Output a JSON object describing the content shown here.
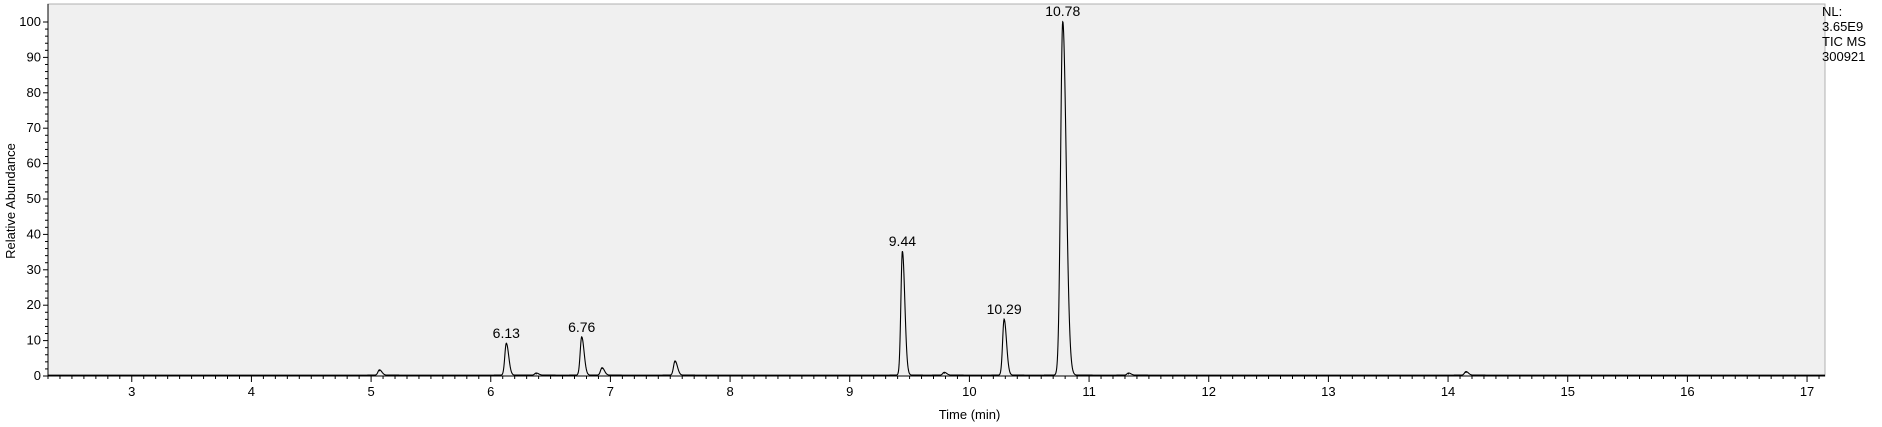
{
  "chart_data": {
    "type": "line",
    "xlabel": "Time (min)",
    "ylabel": "Relative Abundance",
    "xlim": [
      2.3,
      17.15
    ],
    "ylim": [
      0,
      100
    ],
    "x_ticks": [
      3,
      4,
      5,
      6,
      7,
      8,
      9,
      10,
      11,
      12,
      13,
      14,
      15,
      16,
      17
    ],
    "y_ticks": [
      0,
      10,
      20,
      30,
      40,
      50,
      60,
      70,
      80,
      90,
      100
    ],
    "grid": false,
    "background_color": "#f0f0f0",
    "line_color": "#000000",
    "peaks": [
      {
        "rt": 5.07,
        "height": 1.5
      },
      {
        "rt": 6.13,
        "height": 9.0,
        "label": "6.13"
      },
      {
        "rt": 6.38,
        "height": 0.6
      },
      {
        "rt": 6.76,
        "height": 10.8,
        "label": "6.76"
      },
      {
        "rt": 6.93,
        "height": 2.1
      },
      {
        "rt": 7.54,
        "height": 4.0
      },
      {
        "rt": 9.44,
        "height": 35.0,
        "label": "9.44"
      },
      {
        "rt": 9.79,
        "height": 0.8
      },
      {
        "rt": 10.29,
        "height": 15.8,
        "label": "10.29"
      },
      {
        "rt": 10.78,
        "height": 100.0,
        "label": "10.78"
      },
      {
        "rt": 11.33,
        "height": 0.6
      },
      {
        "rt": 14.15,
        "height": 1.0
      }
    ],
    "annotations": [
      "NL:",
      "3.65E9",
      "TIC  MS",
      "300921"
    ]
  }
}
